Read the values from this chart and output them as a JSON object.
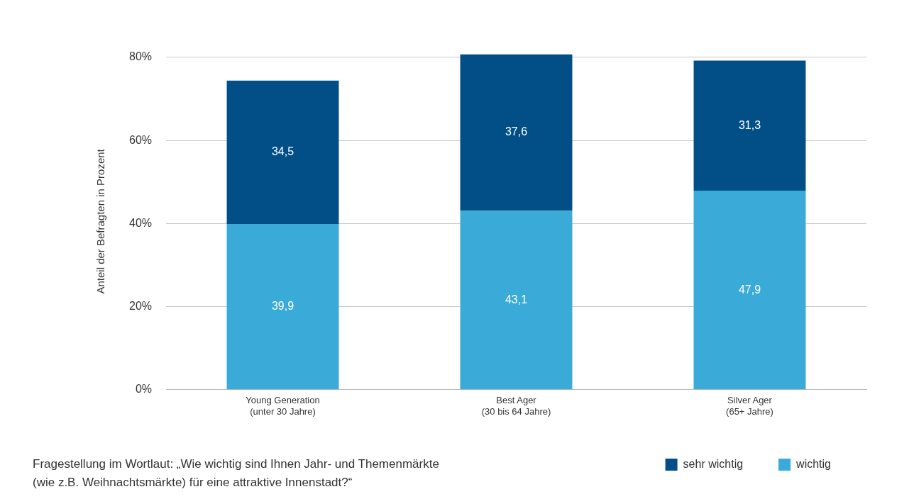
{
  "chart_data": {
    "type": "bar",
    "ylabel": "Anteil der Befragten in Prozent",
    "categories": [
      "Young Generation\n(unter 30 Jahre)",
      "Best Ager\n(30 bis 64 Jahre)",
      "Silver Ager\n(65+ Jahre)"
    ],
    "series": [
      {
        "name": "wichtig",
        "color": "#3aaad9",
        "values": [
          39.9,
          43.1,
          47.9
        ],
        "value_labels": [
          "39,9",
          "43,1",
          "47,9"
        ]
      },
      {
        "name": "sehr wichtig",
        "color": "#024f88",
        "values": [
          34.5,
          37.6,
          31.3
        ],
        "value_labels": [
          "34,5",
          "37,6",
          "31,3"
        ]
      }
    ],
    "stacked": true,
    "ylim": [
      0,
      81
    ],
    "yticks": [
      {
        "value": 0,
        "label": "0%"
      },
      {
        "value": 20,
        "label": "20%"
      },
      {
        "value": 40,
        "label": "40%"
      },
      {
        "value": 60,
        "label": "60%"
      },
      {
        "value": 80,
        "label": "80%"
      }
    ],
    "grid": "y",
    "legend": "bottom right",
    "annotations": [
      "Fragestellung im Wortlaut: „Wie wichtig sind Ihnen Jahr- und Themenmärkte\n(wie z.B. Weihnachtsmärkte) für eine attraktive Innenstadt?“"
    ]
  }
}
